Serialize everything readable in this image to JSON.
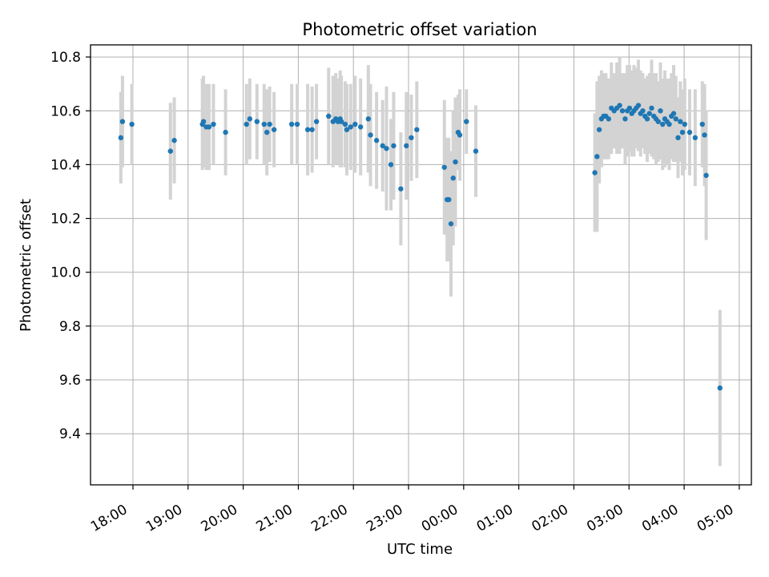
{
  "chart_data": {
    "type": "scatter",
    "title": "Photometric offset variation",
    "xlabel": "UTC time",
    "ylabel": "Photometric offset",
    "x_ticks": [
      "18:00",
      "19:00",
      "20:00",
      "21:00",
      "22:00",
      "23:00",
      "00:00",
      "01:00",
      "02:00",
      "03:00",
      "04:00",
      "05:00"
    ],
    "x_tick_hours": [
      18,
      19,
      20,
      21,
      22,
      23,
      24,
      25,
      26,
      27,
      28,
      29
    ],
    "xlim_hours": [
      17.23,
      29.22
    ],
    "ylim": [
      9.21,
      10.845
    ],
    "y_ticks": [
      9.4,
      9.6,
      9.8,
      10.0,
      10.2,
      10.4,
      10.6,
      10.8
    ],
    "y_tick_labels": [
      "9.4",
      "9.6",
      "9.8",
      "10.0",
      "10.2",
      "10.4",
      "10.6",
      "10.8"
    ],
    "grid": true,
    "colors": {
      "points": "#1f77b4",
      "errorbars": "#d3d3d3",
      "grid": "#b0b0b0"
    },
    "series": [
      {
        "x_hours": [
          17.78,
          17.81,
          17.98,
          18.68,
          18.75,
          19.26,
          19.28,
          19.33,
          19.38,
          19.46,
          19.68,
          20.06,
          20.12,
          20.25,
          20.38,
          20.43,
          20.48,
          20.56,
          20.88,
          20.98,
          21.17,
          21.25,
          21.33,
          21.55,
          21.63,
          21.68,
          21.72,
          21.76,
          21.78,
          21.85,
          21.88,
          21.95,
          22.03,
          22.13,
          22.27,
          22.31,
          22.42,
          22.53,
          22.6,
          22.68,
          22.73,
          22.86,
          22.96,
          23.05,
          23.15,
          23.65,
          23.7,
          23.73,
          23.77,
          23.81,
          23.85,
          23.9,
          23.93,
          24.05,
          24.22,
          26.38,
          26.42,
          26.46,
          26.5,
          26.54,
          26.58,
          26.63,
          26.68,
          26.73,
          26.78,
          26.83,
          26.88,
          26.93,
          26.97,
          27.01,
          27.05,
          27.09,
          27.13,
          27.17,
          27.21,
          27.25,
          27.29,
          27.33,
          27.37,
          27.41,
          27.45,
          27.49,
          27.53,
          27.57,
          27.61,
          27.65,
          27.69,
          27.73,
          27.77,
          27.81,
          27.85,
          27.89,
          27.93,
          27.97,
          28.01,
          28.1,
          28.2,
          28.33,
          28.37,
          28.4,
          28.65
        ],
        "y": [
          10.5,
          10.56,
          10.55,
          10.45,
          10.49,
          10.55,
          10.56,
          10.54,
          10.54,
          10.55,
          10.52,
          10.55,
          10.57,
          10.56,
          10.55,
          10.52,
          10.55,
          10.53,
          10.55,
          10.55,
          10.53,
          10.53,
          10.56,
          10.58,
          10.56,
          10.57,
          10.56,
          10.57,
          10.56,
          10.55,
          10.53,
          10.54,
          10.55,
          10.54,
          10.57,
          10.51,
          10.49,
          10.47,
          10.46,
          10.4,
          10.47,
          10.31,
          10.47,
          10.5,
          10.53,
          10.39,
          10.27,
          10.27,
          10.18,
          10.35,
          10.41,
          10.52,
          10.51,
          10.56,
          10.45,
          10.37,
          10.43,
          10.53,
          10.57,
          10.58,
          10.58,
          10.57,
          10.61,
          10.6,
          10.61,
          10.62,
          10.6,
          10.57,
          10.6,
          10.61,
          10.59,
          10.6,
          10.61,
          10.62,
          10.59,
          10.6,
          10.58,
          10.57,
          10.59,
          10.61,
          10.58,
          10.57,
          10.56,
          10.6,
          10.55,
          10.57,
          10.56,
          10.55,
          10.58,
          10.59,
          10.57,
          10.5,
          10.56,
          10.52,
          10.55,
          10.52,
          10.5,
          10.55,
          10.51,
          10.36,
          9.57
        ],
        "yerr": [
          0.17,
          0.17,
          0.15,
          0.18,
          0.16,
          0.17,
          0.17,
          0.16,
          0.16,
          0.15,
          0.16,
          0.15,
          0.15,
          0.14,
          0.15,
          0.16,
          0.14,
          0.14,
          0.15,
          0.15,
          0.17,
          0.16,
          0.14,
          0.18,
          0.17,
          0.17,
          0.16,
          0.18,
          0.17,
          0.16,
          0.17,
          0.16,
          0.18,
          0.18,
          0.2,
          0.19,
          0.18,
          0.17,
          0.23,
          0.17,
          0.2,
          0.21,
          0.2,
          0.16,
          0.18,
          0.25,
          0.23,
          0.23,
          0.27,
          0.25,
          0.24,
          0.14,
          0.17,
          0.12,
          0.17,
          0.22,
          0.28,
          0.2,
          0.18,
          0.16,
          0.16,
          0.15,
          0.17,
          0.14,
          0.17,
          0.18,
          0.14,
          0.17,
          0.17,
          0.16,
          0.16,
          0.17,
          0.15,
          0.17,
          0.16,
          0.14,
          0.14,
          0.16,
          0.15,
          0.18,
          0.16,
          0.17,
          0.15,
          0.18,
          0.17,
          0.18,
          0.16,
          0.17,
          0.16,
          0.18,
          0.16,
          0.15,
          0.15,
          0.16,
          0.17,
          0.16,
          0.18,
          0.16,
          0.19,
          0.24,
          0.29
        ]
      }
    ]
  }
}
